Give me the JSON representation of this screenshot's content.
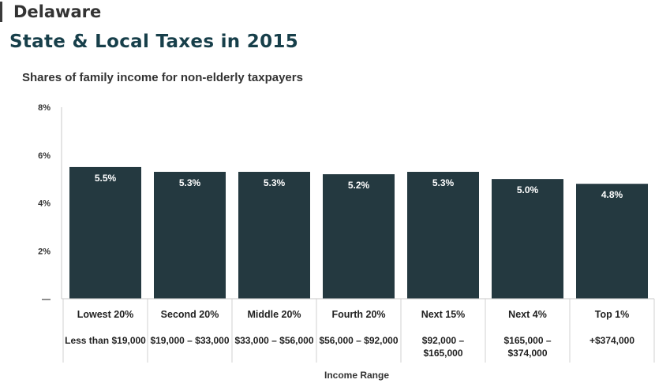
{
  "header": {
    "state": "Delaware",
    "title": "State & Local Taxes in 2015"
  },
  "chart_data": {
    "type": "bar",
    "title": "Shares of family income for non-elderly taxpayers",
    "xlabel": "Income Range",
    "ylabel": "",
    "ylim": [
      0,
      8
    ],
    "yticks": [
      {
        "value": 0,
        "label": "—"
      },
      {
        "value": 2,
        "label": "2%"
      },
      {
        "value": 4,
        "label": "4%"
      },
      {
        "value": 6,
        "label": "6%"
      },
      {
        "value": 8,
        "label": "8%"
      }
    ],
    "categories": [
      "Lowest 20%",
      "Second 20%",
      "Middle 20%",
      "Fourth 20%",
      "Next 15%",
      "Next 4%",
      "Top 1%"
    ],
    "ranges": [
      [
        "Less than $19,000"
      ],
      [
        "$19,000 – $33,000"
      ],
      [
        "$33,000 – $56,000"
      ],
      [
        "$56,000 – $92,000"
      ],
      [
        "$92,000 –",
        "$165,000"
      ],
      [
        "$165,000 –",
        "$374,000"
      ],
      [
        "+$374,000"
      ]
    ],
    "values": [
      5.5,
      5.3,
      5.3,
      5.2,
      5.3,
      5.0,
      4.8
    ],
    "labels": [
      "5.5%",
      "5.3%",
      "5.3%",
      "5.2%",
      "5.3%",
      "5.0%",
      "4.8%"
    ],
    "bar_color": "#243940",
    "grid": false
  }
}
